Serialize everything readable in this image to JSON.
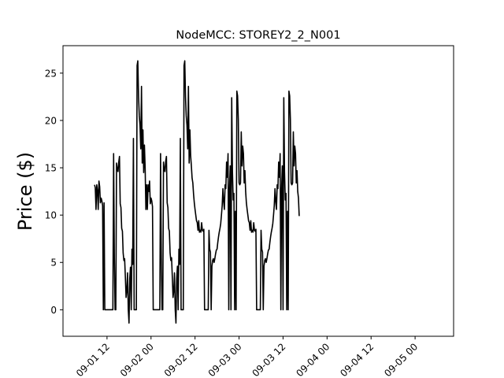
{
  "chart_data": {
    "type": "line",
    "title": "NodeMCC: STOREY2_2_N001",
    "xlabel": "",
    "ylabel": "Price ($)",
    "ylim": [
      -2.8,
      27.9
    ],
    "xlim": [
      "2022-09-01 00:00",
      "2022-09-05 10:30"
    ],
    "grid": false,
    "x_tick_labels": [
      "09-01 12",
      "09-02 00",
      "09-02 12",
      "09-03 00",
      "09-03 12",
      "09-04 00",
      "09-04 12",
      "09-05 00"
    ],
    "x_tick_positions": [
      "2022-09-01 12:00",
      "2022-09-02 00:00",
      "2022-09-02 12:00",
      "2022-09-03 00:00",
      "2022-09-03 12:00",
      "2022-09-04 00:00",
      "2022-09-04 12:00",
      "2022-09-05 00:00"
    ],
    "y_ticks": [
      0,
      5,
      10,
      15,
      20,
      25
    ],
    "series": [
      {
        "color": "#000000",
        "points": [
          [
            "2022-09-01 08:36",
            13.2
          ],
          [
            "2022-09-01 08:48",
            12.9
          ],
          [
            "2022-09-01 09:00",
            10.6
          ],
          [
            "2022-09-01 09:12",
            13.2
          ],
          [
            "2022-09-01 09:24",
            12.6
          ],
          [
            "2022-09-01 09:36",
            10.6
          ],
          [
            "2022-09-01 09:48",
            13.6
          ],
          [
            "2022-09-01 10:00",
            13.0
          ],
          [
            "2022-09-01 10:12",
            11.3
          ],
          [
            "2022-09-01 10:24",
            11.8
          ],
          [
            "2022-09-01 10:36",
            11.5
          ],
          [
            "2022-09-01 10:48",
            11.0
          ],
          [
            "2022-09-01 11:00",
            0.0
          ],
          [
            "2022-09-01 11:12",
            11.3
          ],
          [
            "2022-09-01 11:24",
            0.0
          ],
          [
            "2022-09-01 13:36",
            0.0
          ],
          [
            "2022-09-01 13:48",
            16.5
          ],
          [
            "2022-09-01 14:00",
            5.5
          ],
          [
            "2022-09-01 14:12",
            0.0
          ],
          [
            "2022-09-01 14:24",
            0.0
          ],
          [
            "2022-09-01 14:36",
            15.5
          ],
          [
            "2022-09-01 14:48",
            14.8
          ],
          [
            "2022-09-01 15:00",
            14.6
          ],
          [
            "2022-09-01 15:12",
            15.6
          ],
          [
            "2022-09-01 15:24",
            16.2
          ],
          [
            "2022-09-01 15:36",
            11.2
          ],
          [
            "2022-09-01 15:48",
            10.8
          ],
          [
            "2022-09-01 16:00",
            8.6
          ],
          [
            "2022-09-01 16:12",
            8.3
          ],
          [
            "2022-09-01 16:24",
            6.0
          ],
          [
            "2022-09-01 16:36",
            5.2
          ],
          [
            "2022-09-01 16:48",
            5.4
          ],
          [
            "2022-09-01 17:00",
            3.5
          ],
          [
            "2022-09-01 17:12",
            1.3
          ],
          [
            "2022-09-01 17:24",
            2.0
          ],
          [
            "2022-09-01 17:36",
            3.9
          ],
          [
            "2022-09-01 17:48",
            0.0
          ],
          [
            "2022-09-01 18:00",
            -1.4
          ],
          [
            "2022-09-01 18:12",
            3.3
          ],
          [
            "2022-09-01 18:24",
            4.5
          ],
          [
            "2022-09-01 18:36",
            0.0
          ],
          [
            "2022-09-01 18:48",
            6.4
          ],
          [
            "2022-09-01 19:00",
            4.8
          ],
          [
            "2022-09-01 19:12",
            18.1
          ],
          [
            "2022-09-01 19:24",
            0.0
          ],
          [
            "2022-09-01 19:36",
            0.0
          ],
          [
            "2022-09-01 20:00",
            0.0
          ],
          [
            "2022-09-01 20:12",
            25.8
          ],
          [
            "2022-09-01 20:24",
            26.3
          ],
          [
            "2022-09-01 20:36",
            22.5
          ],
          [
            "2022-09-01 20:48",
            20.5
          ],
          [
            "2022-09-01 21:00",
            19.5
          ],
          [
            "2022-09-01 21:12",
            17.0
          ],
          [
            "2022-09-01 21:24",
            23.6
          ],
          [
            "2022-09-01 21:36",
            15.5
          ],
          [
            "2022-09-01 21:48",
            19.0
          ],
          [
            "2022-09-01 22:00",
            14.5
          ],
          [
            "2022-09-01 22:12",
            17.4
          ],
          [
            "2022-09-01 22:24",
            15.0
          ],
          [
            "2022-09-01 22:36",
            10.6
          ],
          [
            "2022-09-01 22:48",
            13.2
          ],
          [
            "2022-09-01 23:00",
            10.6
          ],
          [
            "2022-09-01 23:12",
            13.2
          ],
          [
            "2022-09-01 23:24",
            12.5
          ],
          [
            "2022-09-01 23:36",
            13.6
          ],
          [
            "2022-09-01 23:48",
            11.2
          ],
          [
            "2022-09-02 00:00",
            11.8
          ],
          [
            "2022-09-02 00:12",
            11.5
          ],
          [
            "2022-09-02 00:24",
            10.9
          ],
          [
            "2022-09-02 00:36",
            0.0
          ],
          [
            "2022-09-02 02:24",
            0.0
          ],
          [
            "2022-09-02 02:36",
            16.5
          ],
          [
            "2022-09-02 02:48",
            5.5
          ],
          [
            "2022-09-02 03:00",
            0.0
          ],
          [
            "2022-09-02 03:12",
            0.0
          ],
          [
            "2022-09-02 03:24",
            15.6
          ],
          [
            "2022-09-02 03:36",
            14.8
          ],
          [
            "2022-09-02 03:48",
            14.6
          ],
          [
            "2022-09-02 04:00",
            15.7
          ],
          [
            "2022-09-02 04:12",
            16.2
          ],
          [
            "2022-09-02 04:24",
            11.3
          ],
          [
            "2022-09-02 04:36",
            10.8
          ],
          [
            "2022-09-02 04:48",
            8.6
          ],
          [
            "2022-09-02 05:00",
            8.3
          ],
          [
            "2022-09-02 05:12",
            6.0
          ],
          [
            "2022-09-02 05:24",
            5.2
          ],
          [
            "2022-09-02 05:36",
            5.5
          ],
          [
            "2022-09-02 05:48",
            3.5
          ],
          [
            "2022-09-02 06:00",
            1.3
          ],
          [
            "2022-09-02 06:12",
            2.0
          ],
          [
            "2022-09-02 06:24",
            3.9
          ],
          [
            "2022-09-02 06:36",
            0.0
          ],
          [
            "2022-09-02 06:48",
            -1.4
          ],
          [
            "2022-09-02 07:00",
            3.3
          ],
          [
            "2022-09-02 07:12",
            4.6
          ],
          [
            "2022-09-02 07:24",
            0.0
          ],
          [
            "2022-09-02 07:36",
            6.4
          ],
          [
            "2022-09-02 07:48",
            4.8
          ],
          [
            "2022-09-02 08:00",
            18.1
          ],
          [
            "2022-09-02 08:12",
            0.0
          ],
          [
            "2022-09-02 08:48",
            0.0
          ],
          [
            "2022-09-02 09:00",
            25.8
          ],
          [
            "2022-09-02 09:12",
            26.3
          ],
          [
            "2022-09-02 09:24",
            22.5
          ],
          [
            "2022-09-02 09:36",
            20.5
          ],
          [
            "2022-09-02 09:48",
            19.5
          ],
          [
            "2022-09-02 10:00",
            17.0
          ],
          [
            "2022-09-02 10:12",
            23.6
          ],
          [
            "2022-09-02 10:24",
            15.5
          ],
          [
            "2022-09-02 10:36",
            19.0
          ],
          [
            "2022-09-02 10:48",
            16.3
          ],
          [
            "2022-09-02 11:00",
            15.2
          ],
          [
            "2022-09-02 11:12",
            13.9
          ],
          [
            "2022-09-02 11:24",
            13.4
          ],
          [
            "2022-09-02 11:36",
            12.2
          ],
          [
            "2022-09-02 11:48",
            11.3
          ],
          [
            "2022-09-02 12:00",
            10.6
          ],
          [
            "2022-09-02 12:12",
            10.0
          ],
          [
            "2022-09-02 12:24",
            9.4
          ],
          [
            "2022-09-02 12:36",
            9.2
          ],
          [
            "2022-09-02 12:48",
            8.4
          ],
          [
            "2022-09-02 13:00",
            9.4
          ],
          [
            "2022-09-02 13:12",
            8.2
          ],
          [
            "2022-09-02 13:24",
            8.4
          ],
          [
            "2022-09-02 13:36",
            8.2
          ],
          [
            "2022-09-02 13:48",
            9.2
          ],
          [
            "2022-09-02 14:00",
            8.4
          ],
          [
            "2022-09-02 14:12",
            8.3
          ],
          [
            "2022-09-02 14:24",
            8.5
          ],
          [
            "2022-09-02 14:36",
            0.0
          ],
          [
            "2022-09-02 15:36",
            0.0
          ],
          [
            "2022-09-02 15:48",
            8.4
          ],
          [
            "2022-09-02 16:00",
            6.4
          ],
          [
            "2022-09-02 16:12",
            6.1
          ],
          [
            "2022-09-02 16:24",
            0.0
          ],
          [
            "2022-09-02 16:36",
            4.6
          ],
          [
            "2022-09-02 16:48",
            5.2
          ],
          [
            "2022-09-02 17:00",
            5.4
          ],
          [
            "2022-09-02 17:12",
            5.0
          ],
          [
            "2022-09-02 17:24",
            5.4
          ],
          [
            "2022-09-02 17:36",
            5.9
          ],
          [
            "2022-09-02 17:48",
            6.3
          ],
          [
            "2022-09-02 18:00",
            6.4
          ],
          [
            "2022-09-02 18:12",
            7.1
          ],
          [
            "2022-09-02 18:24",
            7.7
          ],
          [
            "2022-09-02 18:36",
            8.2
          ],
          [
            "2022-09-02 18:48",
            8.6
          ],
          [
            "2022-09-02 19:00",
            9.1
          ],
          [
            "2022-09-02 19:12",
            10.0
          ],
          [
            "2022-09-02 19:24",
            11.0
          ],
          [
            "2022-09-02 19:36",
            12.8
          ],
          [
            "2022-09-02 19:48",
            11.4
          ],
          [
            "2022-09-02 20:00",
            10.6
          ],
          [
            "2022-09-02 20:12",
            13.2
          ],
          [
            "2022-09-02 20:24",
            12.8
          ],
          [
            "2022-09-02 20:36",
            15.6
          ],
          [
            "2022-09-02 20:48",
            14.0
          ],
          [
            "2022-09-02 21:00",
            16.5
          ],
          [
            "2022-09-02 21:12",
            0.0
          ],
          [
            "2022-09-02 21:24",
            12.8
          ],
          [
            "2022-09-02 21:36",
            15.2
          ],
          [
            "2022-09-02 21:48",
            0.0
          ],
          [
            "2022-09-02 22:00",
            22.4
          ],
          [
            "2022-09-02 22:12",
            14.6
          ],
          [
            "2022-09-02 22:24",
            11.6
          ],
          [
            "2022-09-02 22:36",
            12.3
          ],
          [
            "2022-09-02 22:48",
            0.0
          ],
          [
            "2022-09-02 23:00",
            10.4
          ],
          [
            "2022-09-02 23:12",
            0.0
          ],
          [
            "2022-09-02 23:24",
            23.1
          ],
          [
            "2022-09-02 23:36",
            22.6
          ],
          [
            "2022-09-02 23:48",
            20.1
          ],
          [
            "2022-09-03 00:00",
            13.4
          ],
          [
            "2022-09-03 00:12",
            13.2
          ],
          [
            "2022-09-03 00:24",
            13.4
          ],
          [
            "2022-09-03 00:36",
            18.8
          ],
          [
            "2022-09-03 00:48",
            15.2
          ],
          [
            "2022-09-03 01:00",
            17.3
          ],
          [
            "2022-09-03 01:12",
            16.5
          ],
          [
            "2022-09-03 01:24",
            13.4
          ],
          [
            "2022-09-03 01:36",
            14.7
          ],
          [
            "2022-09-03 01:48",
            12.5
          ],
          [
            "2022-09-03 02:00",
            11.3
          ],
          [
            "2022-09-03 02:12",
            10.6
          ],
          [
            "2022-09-03 02:24",
            10.0
          ],
          [
            "2022-09-03 02:36",
            9.4
          ],
          [
            "2022-09-03 02:48",
            9.2
          ],
          [
            "2022-09-03 03:00",
            8.4
          ],
          [
            "2022-09-03 03:12",
            9.4
          ],
          [
            "2022-09-03 03:24",
            8.2
          ],
          [
            "2022-09-03 03:36",
            8.4
          ],
          [
            "2022-09-03 03:48",
            8.2
          ],
          [
            "2022-09-03 04:00",
            9.2
          ],
          [
            "2022-09-03 04:12",
            8.4
          ],
          [
            "2022-09-03 04:24",
            8.3
          ],
          [
            "2022-09-03 04:36",
            8.5
          ],
          [
            "2022-09-03 04:48",
            0.0
          ],
          [
            "2022-09-03 05:48",
            0.0
          ],
          [
            "2022-09-03 06:00",
            8.4
          ],
          [
            "2022-09-03 06:12",
            6.4
          ],
          [
            "2022-09-03 06:24",
            6.1
          ],
          [
            "2022-09-03 06:36",
            0.0
          ],
          [
            "2022-09-03 06:48",
            4.6
          ],
          [
            "2022-09-03 07:00",
            5.2
          ],
          [
            "2022-09-03 07:12",
            5.4
          ],
          [
            "2022-09-03 07:24",
            5.0
          ],
          [
            "2022-09-03 07:36",
            5.4
          ],
          [
            "2022-09-03 07:48",
            5.9
          ],
          [
            "2022-09-03 08:00",
            6.3
          ],
          [
            "2022-09-03 08:12",
            6.4
          ],
          [
            "2022-09-03 08:24",
            7.1
          ],
          [
            "2022-09-03 08:36",
            7.7
          ],
          [
            "2022-09-03 08:48",
            8.2
          ],
          [
            "2022-09-03 09:00",
            8.6
          ],
          [
            "2022-09-03 09:12",
            9.1
          ],
          [
            "2022-09-03 09:24",
            10.0
          ],
          [
            "2022-09-03 09:36",
            11.0
          ],
          [
            "2022-09-03 09:48",
            12.8
          ],
          [
            "2022-09-03 10:00",
            11.4
          ],
          [
            "2022-09-03 10:12",
            10.6
          ],
          [
            "2022-09-03 10:24",
            13.2
          ],
          [
            "2022-09-03 10:36",
            12.8
          ],
          [
            "2022-09-03 10:48",
            15.6
          ],
          [
            "2022-09-03 11:00",
            14.0
          ],
          [
            "2022-09-03 11:12",
            16.5
          ],
          [
            "2022-09-03 11:24",
            0.0
          ],
          [
            "2022-09-03 11:36",
            12.8
          ],
          [
            "2022-09-03 11:48",
            15.2
          ],
          [
            "2022-09-03 12:00",
            0.0
          ],
          [
            "2022-09-03 12:12",
            22.4
          ],
          [
            "2022-09-03 12:24",
            14.6
          ],
          [
            "2022-09-03 12:36",
            11.6
          ],
          [
            "2022-09-03 12:48",
            12.3
          ],
          [
            "2022-09-03 13:00",
            0.0
          ],
          [
            "2022-09-03 13:12",
            10.4
          ],
          [
            "2022-09-03 13:24",
            0.0
          ],
          [
            "2022-09-03 13:36",
            23.1
          ],
          [
            "2022-09-03 13:48",
            22.6
          ],
          [
            "2022-09-03 14:00",
            20.1
          ],
          [
            "2022-09-03 14:12",
            13.4
          ],
          [
            "2022-09-03 14:24",
            13.2
          ],
          [
            "2022-09-03 14:36",
            13.4
          ],
          [
            "2022-09-03 14:48",
            18.8
          ],
          [
            "2022-09-03 15:00",
            15.2
          ],
          [
            "2022-09-03 15:12",
            17.3
          ],
          [
            "2022-09-03 15:24",
            16.5
          ],
          [
            "2022-09-03 15:36",
            13.4
          ],
          [
            "2022-09-03 15:48",
            14.7
          ],
          [
            "2022-09-03 16:00",
            12.5
          ],
          [
            "2022-09-03 16:12",
            11.8
          ],
          [
            "2022-09-03 16:24",
            9.9
          ]
        ]
      }
    ]
  }
}
